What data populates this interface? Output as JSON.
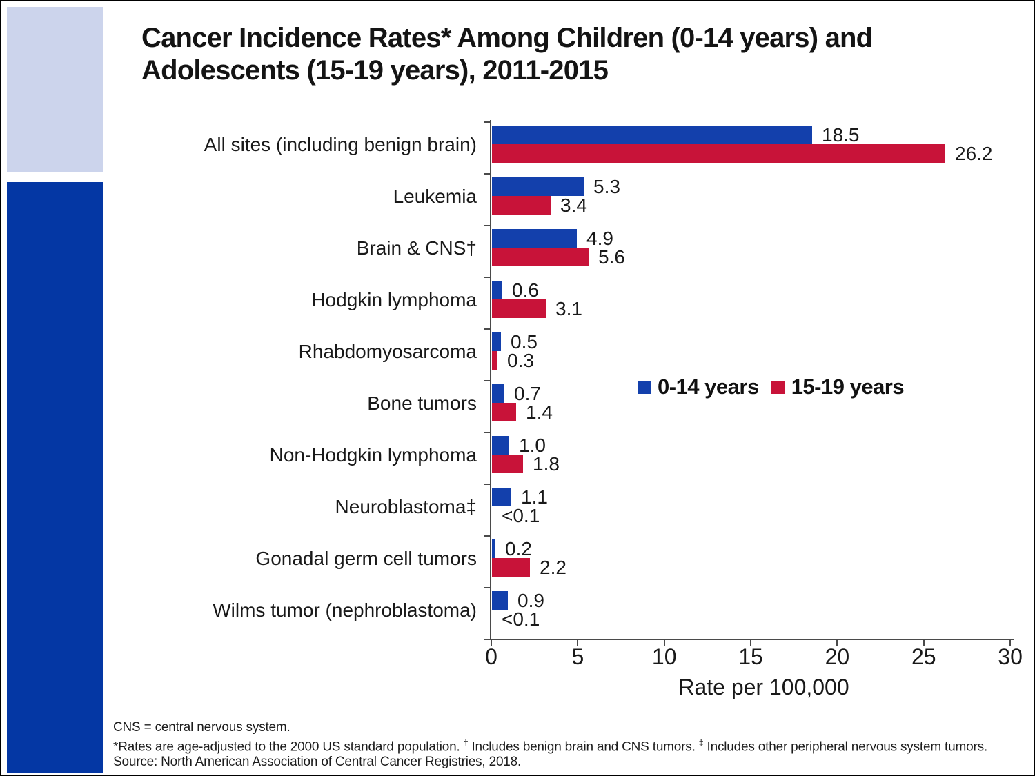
{
  "title": {
    "line1": "Cancer Incidence Rates* Among Children (0-14 years) and",
    "line2": "Adolescents (15-19 years), 2011-2015"
  },
  "chart_data": {
    "type": "bar",
    "orientation": "horizontal",
    "title": "Cancer Incidence Rates* Among Children (0-14 years) and Adolescents (15-19 years), 2011-2015",
    "categories": [
      "All sites (including benign brain)",
      "Leukemia",
      "Brain & CNS†",
      "Hodgkin lymphoma",
      "Rhabdomyosarcoma",
      "Bone tumors",
      "Non-Hodgkin lymphoma",
      "Neuroblastoma‡",
      "Gonadal germ cell tumors",
      "Wilms tumor (nephroblastoma)"
    ],
    "series": [
      {
        "name": "0-14 years",
        "color": "#1340ac",
        "values": [
          18.5,
          5.3,
          4.9,
          0.6,
          0.5,
          0.7,
          1.0,
          1.1,
          0.2,
          0.9
        ],
        "labels": [
          "18.5",
          "5.3",
          "4.9",
          "0.6",
          "0.5",
          "0.7",
          "1.0",
          "1.1",
          "0.2",
          "0.9"
        ]
      },
      {
        "name": "15-19 years",
        "color": "#c81339",
        "values": [
          26.2,
          3.4,
          5.6,
          3.1,
          0.3,
          1.4,
          1.8,
          0,
          2.2,
          0
        ],
        "labels": [
          "26.2",
          "3.4",
          "5.6",
          "3.1",
          "0.3",
          "1.4",
          "1.8",
          "<0.1",
          "2.2",
          "<0.1"
        ]
      }
    ],
    "xlabel": "Rate per 100,000",
    "xlim": [
      0,
      30
    ],
    "xticks": [
      0,
      5,
      10,
      15,
      20,
      25,
      30
    ],
    "grid": false,
    "legend_position": "inside-right"
  },
  "footnotes": {
    "line1": "CNS = central nervous system.",
    "line2_seg1": "*Rates are age-adjusted to the 2000 US standard population. ",
    "line2_sup1": "†",
    "line2_seg2": " Includes benign brain and CNS tumors. ",
    "line2_sup2": "‡",
    "line2_seg3": " Includes other peripheral nervous system tumors.",
    "line3": "Source: North American Association of Central Cancer Registries, 2018."
  },
  "colors": {
    "series_0_14": "#1340ac",
    "series_15_19": "#c81339",
    "rail_light": "#ccd4ec",
    "rail_dark": "#0437a4",
    "axis": "#4a4a4a",
    "text": "#191919"
  }
}
